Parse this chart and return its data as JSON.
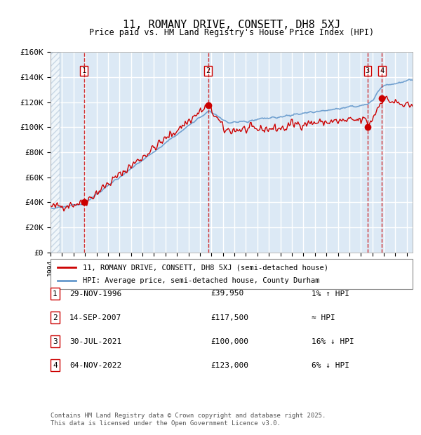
{
  "title": "11, ROMANY DRIVE, CONSETT, DH8 5XJ",
  "subtitle": "Price paid vs. HM Land Registry's House Price Index (HPI)",
  "xlabel": "",
  "ylabel": "",
  "ylim": [
    0,
    160000
  ],
  "yticks": [
    0,
    20000,
    40000,
    60000,
    80000,
    100000,
    120000,
    140000,
    160000
  ],
  "ytick_labels": [
    "£0",
    "£20K",
    "£40K",
    "£60K",
    "£80K",
    "£100K",
    "£120K",
    "£140K",
    "£160K"
  ],
  "bg_color": "#dce9f5",
  "hatch_color": "#b0c4d8",
  "grid_color": "#ffffff",
  "hpi_color": "#6699cc",
  "price_color": "#cc0000",
  "sale_marker_color": "#cc0000",
  "vline_color": "#cc0000",
  "sale_points": [
    {
      "date_num": 1996.91,
      "price": 39950,
      "label": "1"
    },
    {
      "date_num": 2007.71,
      "price": 117500,
      "label": "2"
    },
    {
      "date_num": 2021.58,
      "price": 100000,
      "label": "3"
    },
    {
      "date_num": 2022.84,
      "price": 123000,
      "label": "4"
    }
  ],
  "table_rows": [
    {
      "num": "1",
      "date": "29-NOV-1996",
      "price": "£39,950",
      "vs_hpi": "1% ↑ HPI"
    },
    {
      "num": "2",
      "date": "14-SEP-2007",
      "price": "£117,500",
      "vs_hpi": "≈ HPI"
    },
    {
      "num": "3",
      "date": "30-JUL-2021",
      "price": "£100,000",
      "vs_hpi": "16% ↓ HPI"
    },
    {
      "num": "4",
      "date": "04-NOV-2022",
      "price": "£123,000",
      "vs_hpi": "6% ↓ HPI"
    }
  ],
  "legend_line1": "11, ROMANY DRIVE, CONSETT, DH8 5XJ (semi-detached house)",
  "legend_line2": "HPI: Average price, semi-detached house, County Durham",
  "footnote": "Contains HM Land Registry data © Crown copyright and database right 2025.\nThis data is licensed under the Open Government Licence v3.0.",
  "xmin": 1994.0,
  "xmax": 2025.5
}
